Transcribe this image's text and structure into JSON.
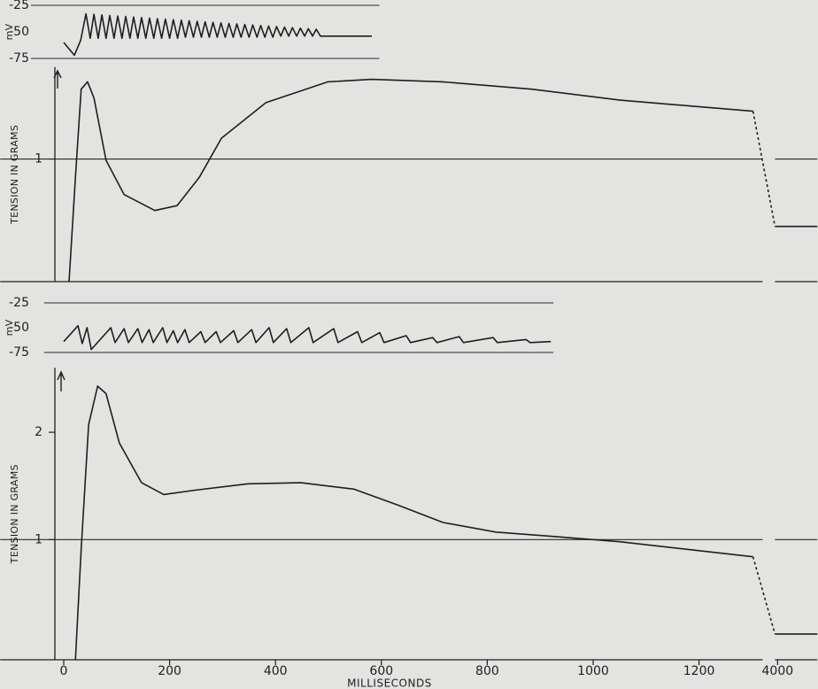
{
  "chart_data": [
    {
      "type": "line",
      "ylabel": "mV",
      "ylim": [
        -80,
        -20
      ],
      "yticks": [
        -25,
        -50,
        -75
      ],
      "xlim": [
        -62,
        596
      ],
      "hlines": [
        -25,
        -75
      ],
      "series": [
        {
          "color": "#1e1e1e",
          "x": [
            0,
            20,
            32,
            42,
            50,
            57,
            65,
            72,
            80,
            87,
            95,
            102,
            110,
            117,
            125,
            132,
            140,
            147,
            155,
            162,
            170,
            177,
            185,
            192,
            200,
            207,
            215,
            222,
            230,
            237,
            245,
            252,
            260,
            267,
            275,
            282,
            290,
            297,
            305,
            312,
            320,
            327,
            335,
            342,
            350,
            357,
            365,
            372,
            380,
            387,
            395,
            402,
            410,
            417,
            425,
            432,
            440,
            447,
            455,
            462,
            470,
            477,
            485,
            582
          ],
          "values": [
            -60,
            -72,
            -58,
            -33,
            -56,
            -33.5,
            -56,
            -34,
            -56,
            -34.5,
            -56,
            -35,
            -56,
            -35.5,
            -56,
            -36,
            -56,
            -36.5,
            -56,
            -37,
            -56,
            -37.5,
            -56,
            -38,
            -56,
            -38.5,
            -56,
            -39,
            -55,
            -39.5,
            -55,
            -40,
            -55,
            -40.5,
            -55,
            -41,
            -55,
            -41.5,
            -55,
            -42,
            -55,
            -42.5,
            -55,
            -43,
            -55,
            -43.5,
            -55,
            -44,
            -55,
            -44.5,
            -55,
            -45,
            -54,
            -45.5,
            -54,
            -46,
            -54,
            -46.5,
            -54,
            -47,
            -54,
            -47.5,
            -54,
            -54
          ]
        }
      ]
    },
    {
      "type": "line",
      "ylabel": "TENSION IN GRAMS",
      "ylim": [
        0,
        1.75
      ],
      "yticks": [
        1
      ],
      "xlim": [
        -120,
        4075
      ],
      "xbreak": [
        1320,
        3995
      ],
      "hlines": [
        1
      ],
      "series": [
        {
          "color": "#1e1e1e",
          "x": [
            10,
            22,
            33,
            45,
            57,
            80,
            114,
            172,
            214,
            256,
            298,
            382,
            499,
            582,
            716,
            884,
            1051,
            1302
          ],
          "values": [
            0,
            0.85,
            1.57,
            1.63,
            1.5,
            0.99,
            0.71,
            0.58,
            0.62,
            0.85,
            1.17,
            1.46,
            1.63,
            1.65,
            1.63,
            1.57,
            1.48,
            1.39
          ]
        },
        {
          "color": "#1e1e1e",
          "dash": true,
          "x": [
            1302,
            3995
          ],
          "values": [
            1.39,
            0.45
          ]
        },
        {
          "color": "#1e1e1e",
          "x": [
            3995,
            4075
          ],
          "values": [
            0.45,
            0.45
          ]
        }
      ]
    },
    {
      "type": "line",
      "ylabel": "mV",
      "ylim": [
        -80,
        -20
      ],
      "yticks": [
        -25,
        -50,
        -75
      ],
      "xlim": [
        -37,
        925
      ],
      "hlines": [
        -25,
        -75
      ],
      "series": [
        {
          "color": "#1e1e1e",
          "x": [
            0,
            27,
            35,
            44,
            52,
            89,
            97,
            114,
            122,
            140,
            148,
            161,
            169,
            187,
            195,
            207,
            215,
            229,
            237,
            259,
            267,
            288,
            296,
            321,
            329,
            355,
            363,
            388,
            396,
            421,
            429,
            463,
            471,
            510,
            518,
            555,
            563,
            597,
            605,
            647,
            655,
            697,
            705,
            747,
            755,
            811,
            819,
            873,
            881,
            920
          ],
          "values": [
            -64,
            -48,
            -66,
            -50,
            -72,
            -50,
            -65,
            -51,
            -65,
            -51,
            -65,
            -52,
            -65,
            -50,
            -65,
            -53,
            -65,
            -52,
            -65,
            -54,
            -65,
            -54,
            -65,
            -53,
            -65,
            -52,
            -65,
            -50,
            -65,
            -51,
            -65,
            -50,
            -65,
            -51,
            -65,
            -54,
            -65,
            -55,
            -65,
            -58,
            -65,
            -60,
            -65,
            -59,
            -65,
            -60,
            -65,
            -62,
            -65,
            -64
          ]
        }
      ]
    },
    {
      "type": "line",
      "ylabel": "TENSION IN GRAMS",
      "xlabel": "MILLISECONDS",
      "ylim": [
        -0.12,
        2.6
      ],
      "yticks": [
        1,
        2
      ],
      "xlim": [
        -120,
        4075
      ],
      "xbreak": [
        1320,
        3995
      ],
      "hlines": [
        1
      ],
      "xticks": [
        0,
        200,
        400,
        600,
        800,
        1000,
        1200,
        4000
      ],
      "series": [
        {
          "color": "#1e1e1e",
          "x": [
            22,
            33,
            47,
            64,
            80,
            105,
            147,
            189,
            248,
            348,
            448,
            548,
            632,
            716,
            816,
            950,
            1050,
            1302
          ],
          "values": [
            -0.12,
            0.91,
            2.07,
            2.43,
            2.36,
            1.9,
            1.53,
            1.42,
            1.46,
            1.52,
            1.53,
            1.47,
            1.32,
            1.16,
            1.07,
            1.02,
            0.98,
            0.84
          ]
        },
        {
          "color": "#1e1e1e",
          "dash": true,
          "x": [
            1302,
            3995
          ],
          "values": [
            0.84,
            0.12
          ]
        },
        {
          "color": "#1e1e1e",
          "x": [
            3995,
            4075
          ],
          "values": [
            0.12,
            0.12
          ]
        }
      ]
    }
  ]
}
